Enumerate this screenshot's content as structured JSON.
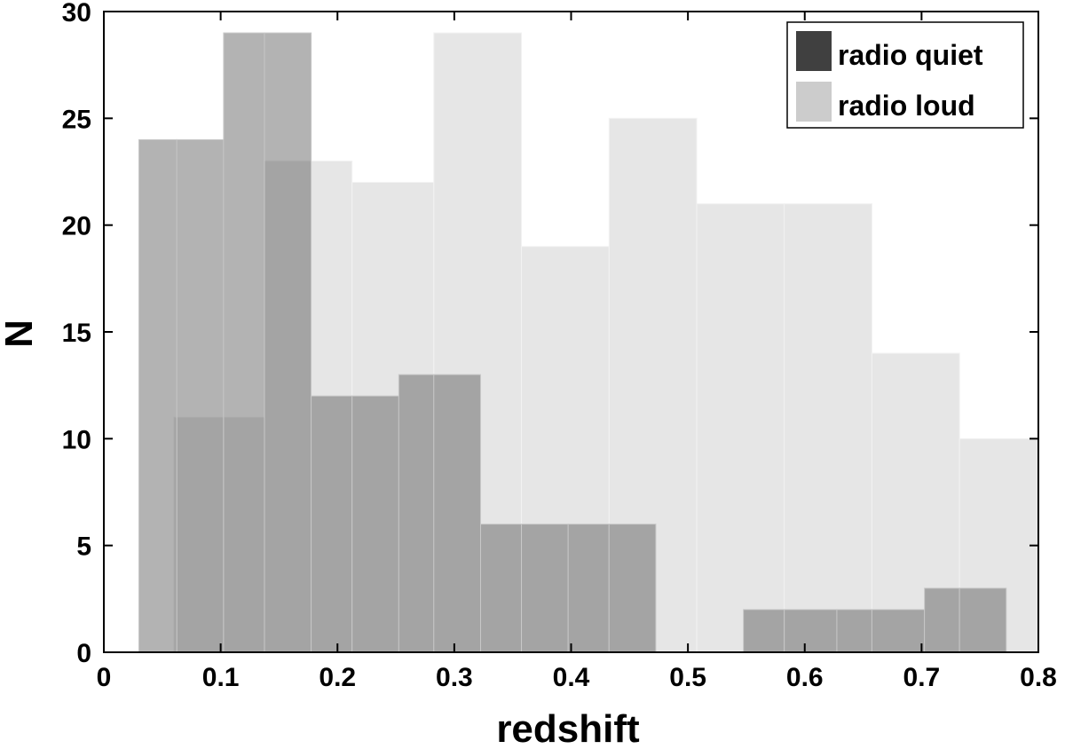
{
  "chart_data": {
    "type": "bar",
    "subtype": "overlapping-histogram",
    "title": "",
    "xlabel": "redshift",
    "ylabel": "N",
    "xlim": [
      0,
      0.8
    ],
    "ylim": [
      0,
      30
    ],
    "xticks": [
      "0",
      "0.1",
      "0.2",
      "0.3",
      "0.4",
      "0.5",
      "0.6",
      "0.7",
      "0.8"
    ],
    "yticks": [
      "0",
      "5",
      "10",
      "15",
      "20",
      "25",
      "30"
    ],
    "grid": false,
    "legend_position": "top-right",
    "series": [
      {
        "name": "radio loud",
        "color": "#e6e6e6",
        "legend_color": "#cccccc",
        "bins": [
          {
            "x0": 0.06,
            "x1": 0.1025,
            "value": 11
          },
          {
            "x0": 0.1025,
            "x1": 0.1375,
            "value": 11
          },
          {
            "x0": 0.1375,
            "x1": 0.1775,
            "value": 23
          },
          {
            "x0": 0.1775,
            "x1": 0.2125,
            "value": 23
          },
          {
            "x0": 0.2125,
            "x1": 0.2825,
            "value": 22
          },
          {
            "x0": 0.2825,
            "x1": 0.3575,
            "value": 29
          },
          {
            "x0": 0.3575,
            "x1": 0.4325,
            "value": 19
          },
          {
            "x0": 0.4325,
            "x1": 0.5075,
            "value": 25
          },
          {
            "x0": 0.5075,
            "x1": 0.5825,
            "value": 21
          },
          {
            "x0": 0.5825,
            "x1": 0.6575,
            "value": 21
          },
          {
            "x0": 0.6575,
            "x1": 0.7325,
            "value": 14
          },
          {
            "x0": 0.7325,
            "x1": 0.8,
            "value": 10
          }
        ]
      },
      {
        "name": "radio quiet",
        "color": "#404040",
        "legend_color": "#404040",
        "opacity": 0.4,
        "bins": [
          {
            "x0": 0.03,
            "x1": 0.0625,
            "value": 24
          },
          {
            "x0": 0.0625,
            "x1": 0.1025,
            "value": 24
          },
          {
            "x0": 0.1025,
            "x1": 0.1375,
            "value": 29
          },
          {
            "x0": 0.1375,
            "x1": 0.1775,
            "value": 29
          },
          {
            "x0": 0.1775,
            "x1": 0.2125,
            "value": 12
          },
          {
            "x0": 0.2125,
            "x1": 0.2525,
            "value": 12
          },
          {
            "x0": 0.2525,
            "x1": 0.2825,
            "value": 13
          },
          {
            "x0": 0.2825,
            "x1": 0.3225,
            "value": 13
          },
          {
            "x0": 0.3225,
            "x1": 0.3575,
            "value": 6
          },
          {
            "x0": 0.3575,
            "x1": 0.3975,
            "value": 6
          },
          {
            "x0": 0.3975,
            "x1": 0.4325,
            "value": 6
          },
          {
            "x0": 0.4325,
            "x1": 0.4725,
            "value": 6
          },
          {
            "x0": 0.4725,
            "x1": 0.5475,
            "value": 0
          },
          {
            "x0": 0.5475,
            "x1": 0.5825,
            "value": 2
          },
          {
            "x0": 0.5825,
            "x1": 0.6275,
            "value": 2
          },
          {
            "x0": 0.6275,
            "x1": 0.6575,
            "value": 2
          },
          {
            "x0": 0.6575,
            "x1": 0.7025,
            "value": 2
          },
          {
            "x0": 0.7025,
            "x1": 0.7325,
            "value": 3
          },
          {
            "x0": 0.7325,
            "x1": 0.7725,
            "value": 3
          }
        ]
      }
    ]
  }
}
